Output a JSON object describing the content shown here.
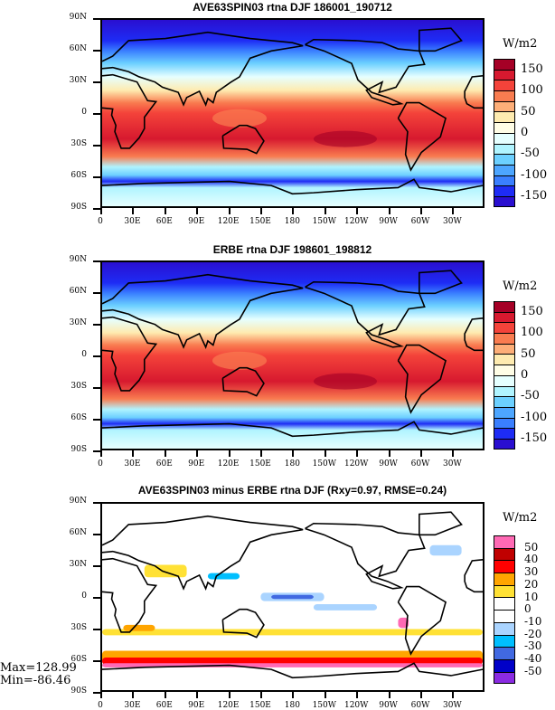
{
  "panels": [
    {
      "title": "AVE63SPIN03 rtna DJF 186001_190712",
      "unit": "W/m2",
      "kind": "abs"
    },
    {
      "title": "ERBE rtna DJF 198601_198812",
      "unit": "W/m2",
      "kind": "abs"
    },
    {
      "title": "AVE63SPIN03 minus ERBE rtna DJF (Rxy=0.97, RMSE=0.24)",
      "unit": "W/m2",
      "kind": "diff"
    }
  ],
  "lat_labels": [
    "90N",
    "60N",
    "30N",
    "0",
    "30S",
    "60S",
    "90S"
  ],
  "lon_labels": [
    "0",
    "30E",
    "60E",
    "90E",
    "120E",
    "150E",
    "180",
    "150W",
    "120W",
    "90W",
    "60W",
    "30W"
  ],
  "stats": {
    "max": "Max=128.99",
    "min": "Min=-86.46"
  },
  "chart_data": {
    "type": "heatmap",
    "abs_colorbar": {
      "levels": [
        -150,
        -125,
        -100,
        -75,
        -50,
        -25,
        0,
        25,
        50,
        75,
        100,
        125,
        150
      ],
      "labels": [
        "150",
        "100",
        "50",
        "0",
        "-50",
        "-100",
        "-150"
      ],
      "colors": [
        "#2a0fd0",
        "#1e2cf5",
        "#3a7fff",
        "#4da6ff",
        "#6cd0ff",
        "#b0f4ff",
        "#e6ffff",
        "#fffde6",
        "#feebb0",
        "#fdae78",
        "#f97c50",
        "#f4433a",
        "#d7192f",
        "#a50026"
      ]
    },
    "diff_colorbar": {
      "levels": [
        -50,
        -40,
        -30,
        -20,
        -10,
        0,
        10,
        20,
        30,
        40,
        50
      ],
      "labels": [
        "50",
        "40",
        "30",
        "20",
        "10",
        "0",
        "-10",
        "-20",
        "-30",
        "-40",
        "-50"
      ],
      "colors": [
        "#8a2be2",
        "#0000c8",
        "#4169e1",
        "#00bfff",
        "#aad4ff",
        "#ffffff",
        "#ffffff",
        "#ffe135",
        "#ffa500",
        "#ff0000",
        "#c00000",
        "#ff69b4"
      ]
    }
  }
}
